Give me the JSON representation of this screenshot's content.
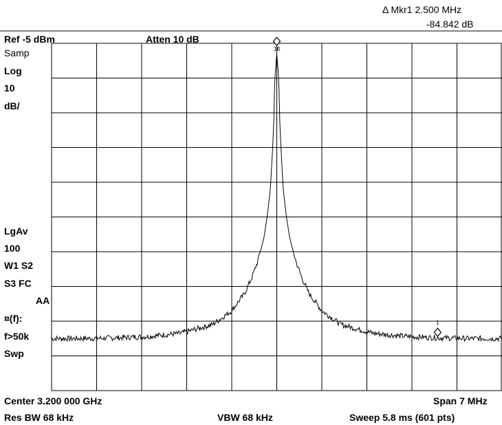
{
  "header": {
    "marker_readout": "Δ Mkr1 2.500 MHz",
    "marker_value": "-84.842 dB",
    "ref_level": "Ref -5 dBm",
    "attenuation": "Atten 10 dB"
  },
  "sidebar": {
    "detector": "Samp",
    "scale_type": "Log",
    "scale_value": "10",
    "scale_unit": "dB/",
    "avg_label": "LgAv",
    "avg_count": "100",
    "w1s2": "W1 S2",
    "s3fc": "S3 FC",
    "aa": "AA",
    "corr": "¤(f):",
    "freq_limit": "f>50k",
    "swp": "Swp"
  },
  "footer": {
    "center": "Center 3.200 000 GHz",
    "span": "Span 7 MHz",
    "res_bw": "Res BW 68 kHz",
    "vbw": "VBW 68 kHz",
    "sweep": "Sweep 5.8 ms (601 pts)"
  },
  "markers": {
    "ref_marker_label": "1R",
    "delta_marker_label": "1"
  },
  "chart_data": {
    "type": "line",
    "grid": true,
    "x_unit": "MHz offset from center",
    "y_unit": "dB",
    "xlim": [
      -3.5,
      3.5
    ],
    "ylim": [
      -100,
      0
    ],
    "series": [
      {
        "values_x": [
          -3.5,
          -3.0,
          -2.5,
          -2.0,
          -1.5,
          -1.0,
          -0.7,
          -0.5,
          -0.4,
          -0.3,
          -0.2,
          -0.15,
          -0.1,
          -0.05,
          -0.03,
          0,
          0.03,
          0.05,
          0.1,
          0.15,
          0.2,
          0.3,
          0.4,
          0.5,
          0.7,
          1.0,
          1.5,
          2.0,
          2.5,
          3.0,
          3.5
        ],
        "values_y": [
          -85,
          -85,
          -84.8,
          -84.4,
          -83.5,
          -81,
          -77,
          -72,
          -68,
          -63,
          -56,
          -50,
          -42,
          -25,
          -10,
          -3,
          -10,
          -25,
          -42,
          -50,
          -56,
          -63,
          -68,
          -72,
          -77,
          -81,
          -83.5,
          -84.4,
          -84.8,
          -85,
          -85
        ]
      }
    ],
    "markers": [
      {
        "label": "1R",
        "x": 0,
        "y": -3
      },
      {
        "label": "1",
        "x": 2.5,
        "y": -84.8
      }
    ]
  }
}
